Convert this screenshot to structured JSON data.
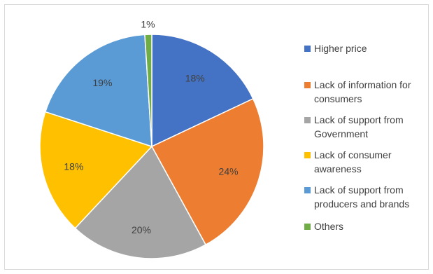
{
  "chart_data": {
    "type": "pie",
    "start_angle_deg": 0,
    "direction": "clockwise",
    "data_label_suffix": "%",
    "slices": [
      {
        "label": "Higher price",
        "value": 18,
        "color": "#4472C4",
        "data_label": "18%"
      },
      {
        "label": "Lack of information for consumers",
        "value": 24,
        "color": "#ED7D31",
        "data_label": "24%"
      },
      {
        "label": "Lack of support from Government",
        "value": 20,
        "color": "#A5A5A5",
        "data_label": "20%"
      },
      {
        "label": "Lack of consumer awareness",
        "value": 18,
        "color": "#FFC000",
        "data_label": "18%"
      },
      {
        "label": "Lack of support from producers and brands",
        "value": 19,
        "color": "#5B9BD5",
        "data_label": "19%"
      },
      {
        "label": "Others",
        "value": 1,
        "color": "#70AD47",
        "data_label": "1%"
      }
    ],
    "legend": {
      "placement": "right",
      "entries": [
        {
          "lines": [
            "Higher price"
          ]
        },
        {
          "lines": [
            "Lack of information for",
            "consumers"
          ]
        },
        {
          "lines": [
            "Lack of support from",
            "Government"
          ]
        },
        {
          "lines": [
            "Lack of consumer",
            "awareness"
          ]
        },
        {
          "lines": [
            "Lack of support from",
            "producers and brands"
          ]
        },
        {
          "lines": [
            "Others"
          ]
        }
      ]
    }
  }
}
